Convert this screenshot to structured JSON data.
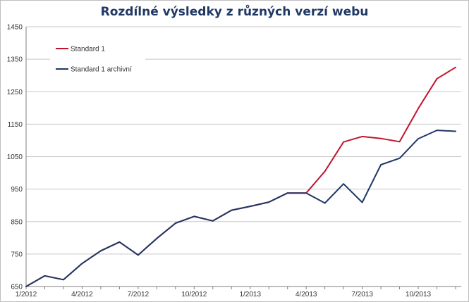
{
  "chart_data": {
    "type": "line",
    "title": "Rozdílné výsledky z různých verzí webu",
    "xlabel": "",
    "ylabel": "",
    "ylim": [
      650,
      1450
    ],
    "yticks": [
      650,
      750,
      850,
      950,
      1050,
      1150,
      1250,
      1350,
      1450
    ],
    "ytick_labels": [
      "650",
      "750",
      "850",
      "950",
      "1050",
      "1150",
      "1250",
      "1350",
      "1450"
    ],
    "x": [
      "1/2012",
      "2/2012",
      "3/2012",
      "4/2012",
      "5/2012",
      "6/2012",
      "7/2012",
      "8/2012",
      "9/2012",
      "10/2012",
      "11/2012",
      "12/2012",
      "1/2013",
      "2/2013",
      "3/2013",
      "4/2013",
      "5/2013",
      "6/2013",
      "7/2013",
      "8/2013",
      "9/2013",
      "10/2013",
      "11/2013",
      "12/2013"
    ],
    "xtick_labels": [
      {
        "index": 0,
        "label": "1/2012"
      },
      {
        "index": 3,
        "label": "4/2012"
      },
      {
        "index": 6,
        "label": "7/2012"
      },
      {
        "index": 9,
        "label": "10/2012"
      },
      {
        "index": 12,
        "label": "1/2013"
      },
      {
        "index": 15,
        "label": "4/2013"
      },
      {
        "index": 18,
        "label": "7/2013"
      },
      {
        "index": 21,
        "label": "10/2013"
      }
    ],
    "grid": "horizontal",
    "legend_position": "top-left",
    "series": [
      {
        "name": "Standard 1",
        "color": "#c0152f",
        "values": [
          650,
          683,
          671,
          721,
          760,
          787,
          747,
          798,
          845,
          866,
          852,
          885,
          897,
          910,
          938,
          938,
          1005,
          1095,
          1112,
          1106,
          1096,
          1198,
          1290,
          1325
        ]
      },
      {
        "name": "Standard 1 archivní",
        "color": "#1f3864",
        "values": [
          650,
          683,
          671,
          721,
          760,
          787,
          747,
          798,
          845,
          866,
          852,
          885,
          897,
          910,
          938,
          938,
          907,
          966,
          909,
          1025,
          1045,
          1105,
          1131,
          1128
        ]
      }
    ]
  }
}
